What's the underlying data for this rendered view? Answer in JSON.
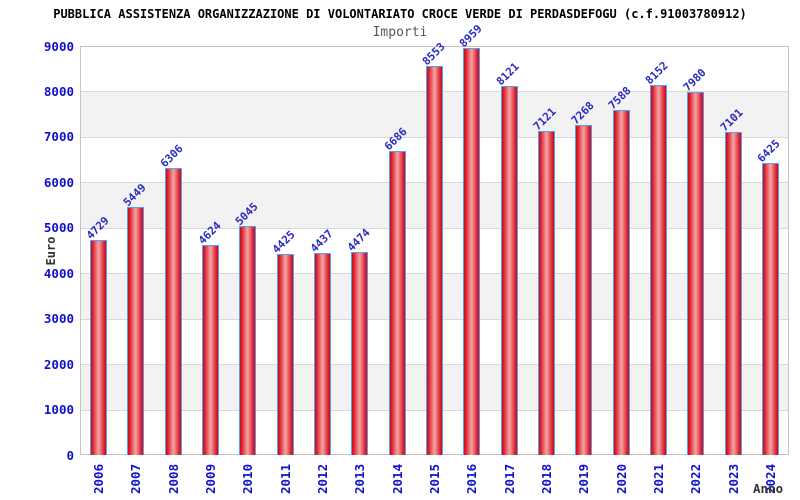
{
  "chart_data": {
    "type": "bar",
    "title": "PUBBLICA ASSISTENZA ORGANIZZAZIONE DI VOLONTARIATO CROCE VERDE DI PERDASDEFOGU (c.f.91003780912)",
    "subtitle": "Importi",
    "xlabel": "Anno",
    "ylabel": "Euro",
    "categories": [
      "2006",
      "2007",
      "2008",
      "2009",
      "2010",
      "2011",
      "2012",
      "2013",
      "2014",
      "2015",
      "2016",
      "2017",
      "2018",
      "2019",
      "2020",
      "2021",
      "2022",
      "2023",
      "2024"
    ],
    "values": [
      4729,
      5449,
      6306,
      4624,
      5045,
      4425,
      4437,
      4474,
      6686,
      8553,
      8959,
      8121,
      7121,
      7268,
      7588,
      8152,
      7980,
      7101,
      6425
    ],
    "ylim": [
      0,
      9000
    ],
    "ytick_step": 1000,
    "grid": true,
    "legend": "none",
    "colors": {
      "tick_label_blue": "#1111cc",
      "value_label_blue": "#2a2ac0",
      "bar_border": "#55a0f0",
      "bar_edge": "#c00e20",
      "bar_mid": "#e02535",
      "bar_center": "#f29c9c",
      "band_gray": "#f2f2f2",
      "band_white": "#ffffff",
      "grid_line": "#d8d8d8",
      "plot_border": "#c4c4c4",
      "title_color": "#000000",
      "subtitle_color": "#5a5a5a",
      "axis_label_color": "#333333"
    }
  }
}
